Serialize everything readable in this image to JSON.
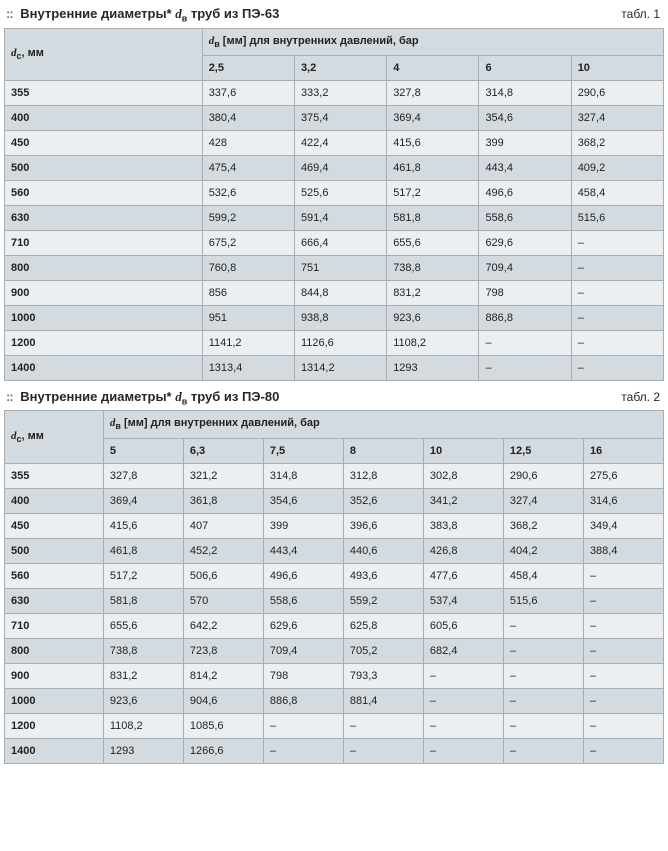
{
  "colors": {
    "header_bg": "#d4dbe0",
    "row_light": "#eceff2",
    "row_dark": "#d4dbe0",
    "border": "#a8adb1",
    "text": "#222222",
    "title": "#25282a"
  },
  "table1": {
    "title_prefix": "Внутренние диаметры* ",
    "title_var": "d",
    "title_sub": "в",
    "title_suffix": " труб из ПЭ-63",
    "table_num": "табл. 1",
    "dc_header_var": "d",
    "dc_header_sub": "с",
    "dc_header_unit": ", мм",
    "dv_header_var": "d",
    "dv_header_sub": "в",
    "dv_header_text": " [мм] для внутренних давлений, бар",
    "pressures": [
      "2,5",
      "3,2",
      "4",
      "6",
      "10"
    ],
    "rows": [
      {
        "dc": "355",
        "v": [
          "337,6",
          "333,2",
          "327,8",
          "314,8",
          "290,6"
        ]
      },
      {
        "dc": "400",
        "v": [
          "380,4",
          "375,4",
          "369,4",
          "354,6",
          "327,4"
        ]
      },
      {
        "dc": "450",
        "v": [
          "428",
          "422,4",
          "415,6",
          "399",
          "368,2"
        ]
      },
      {
        "dc": "500",
        "v": [
          "475,4",
          "469,4",
          "461,8",
          "443,4",
          "409,2"
        ]
      },
      {
        "dc": "560",
        "v": [
          "532,6",
          "525,6",
          "517,2",
          "496,6",
          "458,4"
        ]
      },
      {
        "dc": "630",
        "v": [
          "599,2",
          "591,4",
          "581,8",
          "558,6",
          "515,6"
        ]
      },
      {
        "dc": "710",
        "v": [
          "675,2",
          "666,4",
          "655,6",
          "629,6",
          "–"
        ]
      },
      {
        "dc": "800",
        "v": [
          "760,8",
          "751",
          "738,8",
          "709,4",
          "–"
        ]
      },
      {
        "dc": "900",
        "v": [
          "856",
          "844,8",
          "831,2",
          "798",
          "–"
        ]
      },
      {
        "dc": "1000",
        "v": [
          "951",
          "938,8",
          "923,6",
          "886,8",
          "–"
        ]
      },
      {
        "dc": "1200",
        "v": [
          "1141,2",
          "1126,6",
          "1108,2",
          "–",
          "–"
        ]
      },
      {
        "dc": "1400",
        "v": [
          "1313,4",
          "1314,2",
          "1293",
          "–",
          "–"
        ]
      }
    ]
  },
  "table2": {
    "title_prefix": "Внутренние диаметры* ",
    "title_var": "d",
    "title_sub": "в",
    "title_suffix": " труб из ПЭ-80",
    "table_num": "табл. 2",
    "dc_header_var": "d",
    "dc_header_sub": "с",
    "dc_header_unit": ", мм",
    "dv_header_var": "d",
    "dv_header_sub": "в",
    "dv_header_text": " [мм] для внутренних давлений, бар",
    "pressures": [
      "5",
      "6,3",
      "7,5",
      "8",
      "10",
      "12,5",
      "16"
    ],
    "rows": [
      {
        "dc": "355",
        "v": [
          "327,8",
          "321,2",
          "314,8",
          "312,8",
          "302,8",
          "290,6",
          "275,6"
        ]
      },
      {
        "dc": "400",
        "v": [
          "369,4",
          "361,8",
          "354,6",
          "352,6",
          "341,2",
          "327,4",
          "314,6"
        ]
      },
      {
        "dc": "450",
        "v": [
          "415,6",
          "407",
          "399",
          "396,6",
          "383,8",
          "368,2",
          "349,4"
        ]
      },
      {
        "dc": "500",
        "v": [
          "461,8",
          "452,2",
          "443,4",
          "440,6",
          "426,8",
          "404,2",
          "388,4"
        ]
      },
      {
        "dc": "560",
        "v": [
          "517,2",
          "506,6",
          "496,6",
          "493,6",
          "477,6",
          "458,4",
          "–"
        ]
      },
      {
        "dc": "630",
        "v": [
          "581,8",
          "570",
          "558,6",
          "559,2",
          "537,4",
          "515,6",
          "–"
        ]
      },
      {
        "dc": "710",
        "v": [
          "655,6",
          "642,2",
          "629,6",
          "625,8",
          "605,6",
          "–",
          "–"
        ]
      },
      {
        "dc": "800",
        "v": [
          "738,8",
          "723,8",
          "709,4",
          "705,2",
          "682,4",
          "–",
          "–"
        ]
      },
      {
        "dc": "900",
        "v": [
          "831,2",
          "814,2",
          "798",
          "793,3",
          "–",
          "–",
          "–"
        ]
      },
      {
        "dc": "1000",
        "v": [
          "923,6",
          "904,6",
          "886,8",
          "881,4",
          "–",
          "–",
          "–"
        ]
      },
      {
        "dc": "1200",
        "v": [
          "1108,2",
          "1085,6",
          "–",
          "–",
          "–",
          "–",
          "–"
        ]
      },
      {
        "dc": "1400",
        "v": [
          "1293",
          "1266,6",
          "–",
          "–",
          "–",
          "–",
          "–"
        ]
      }
    ]
  }
}
